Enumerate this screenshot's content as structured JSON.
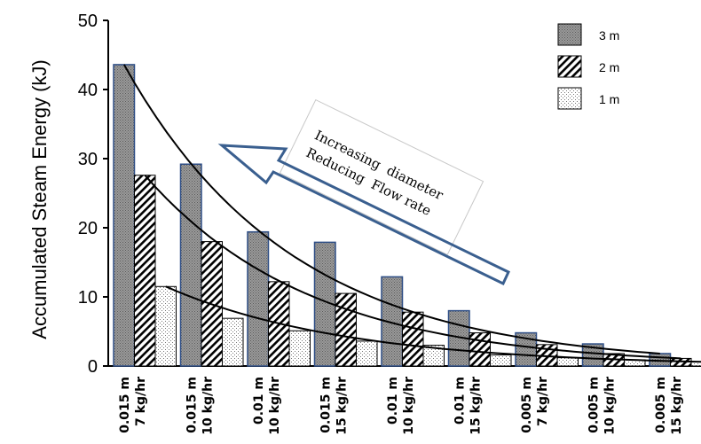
{
  "chart_data": {
    "type": "bar",
    "ylabel": "Accumulated Steam Energy (kJ)",
    "xlabel": "",
    "ylim": [
      0,
      50
    ],
    "yticks": [
      0,
      10,
      20,
      30,
      40,
      50
    ],
    "categories": [
      [
        "0.015 m",
        "7 kg/hr"
      ],
      [
        "0.015 m",
        "10 kg/hr"
      ],
      [
        "0.01 m",
        "10 kg/hr"
      ],
      [
        "0.015 m",
        "15 kg/hr"
      ],
      [
        "0.01 m",
        "10 kg/hr"
      ],
      [
        "0.01 m",
        "15 kg/hr"
      ],
      [
        "0.005 m",
        "7 kg/hr"
      ],
      [
        "0.005 m",
        "10 kg/hr"
      ],
      [
        "0.005 m",
        "15 kg/hr"
      ]
    ],
    "series": [
      {
        "name": "3 m",
        "values": [
          43.6,
          29.2,
          19.4,
          17.9,
          12.9,
          8.0,
          4.8,
          3.2,
          1.8
        ]
      },
      {
        "name": "2 m",
        "values": [
          27.6,
          18.0,
          12.2,
          10.5,
          7.8,
          4.8,
          3.1,
          1.8,
          1.1
        ]
      },
      {
        "name": "1 m",
        "values": [
          11.5,
          6.9,
          5.1,
          3.6,
          3.0,
          1.6,
          1.2,
          0.9,
          0.6
        ]
      }
    ],
    "legend_position": "top-right",
    "trendlines": "exponential decay curve per series",
    "annotation": {
      "lines": [
        "Increasing  diameter",
        "Reducing  Flow rate"
      ],
      "arrow_direction": "up-left"
    }
  }
}
